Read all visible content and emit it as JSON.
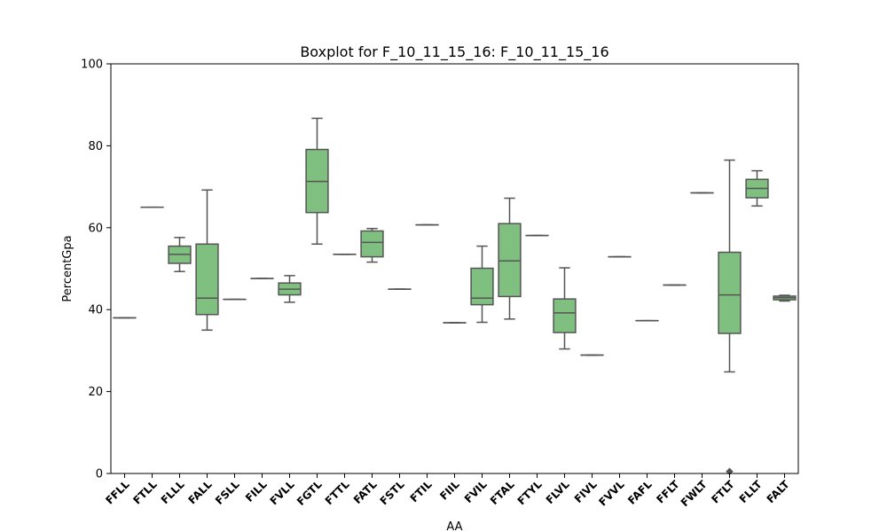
{
  "chart_data": {
    "type": "boxplot",
    "title": "Boxplot for F_10_11_15_16: F_10_11_15_16",
    "xlabel": "AA",
    "ylabel": "PercentGpa",
    "ylim": [
      0,
      100
    ],
    "yticks": [
      0,
      20,
      40,
      60,
      80,
      100
    ],
    "box_color": "#7fbf7f",
    "line_color": "#555555",
    "grid": false,
    "categories": [
      "FFLL",
      "FTLL",
      "FLLL",
      "FALL",
      "FSLL",
      "FILL",
      "FVLL",
      "FGTL",
      "FTTL",
      "FATL",
      "FSTL",
      "FTIL",
      "FIIL",
      "FVIL",
      "FTAL",
      "FTYL",
      "FLVL",
      "FIVL",
      "FVVL",
      "FAFL",
      "FFLT",
      "FWLT",
      "FTLT",
      "FLLT",
      "FALT"
    ],
    "boxes": [
      {
        "whislo": 38.0,
        "q1": 38.0,
        "med": 38.0,
        "q3": 38.0,
        "whishi": 38.0,
        "fliers": []
      },
      {
        "whislo": 65.0,
        "q1": 65.0,
        "med": 65.0,
        "q3": 65.0,
        "whishi": 65.0,
        "fliers": []
      },
      {
        "whislo": 49.3,
        "q1": 51.3,
        "med": 53.5,
        "q3": 55.5,
        "whishi": 57.6,
        "fliers": []
      },
      {
        "whislo": 35.0,
        "q1": 38.8,
        "med": 42.8,
        "q3": 56.0,
        "whishi": 69.2,
        "fliers": []
      },
      {
        "whislo": 42.5,
        "q1": 42.5,
        "med": 42.5,
        "q3": 42.5,
        "whishi": 42.5,
        "fliers": []
      },
      {
        "whislo": 47.6,
        "q1": 47.6,
        "med": 47.6,
        "q3": 47.6,
        "whishi": 47.6,
        "fliers": []
      },
      {
        "whislo": 41.8,
        "q1": 43.6,
        "med": 45.0,
        "q3": 46.5,
        "whishi": 48.3,
        "fliers": []
      },
      {
        "whislo": 56.0,
        "q1": 63.7,
        "med": 71.3,
        "q3": 79.1,
        "whishi": 86.7,
        "fliers": []
      },
      {
        "whislo": 53.5,
        "q1": 53.5,
        "med": 53.5,
        "q3": 53.5,
        "whishi": 53.5,
        "fliers": []
      },
      {
        "whislo": 51.6,
        "q1": 52.9,
        "med": 56.4,
        "q3": 59.2,
        "whishi": 59.8,
        "fliers": []
      },
      {
        "whislo": 45.0,
        "q1": 45.0,
        "med": 45.0,
        "q3": 45.0,
        "whishi": 45.0,
        "fliers": []
      },
      {
        "whislo": 60.7,
        "q1": 60.7,
        "med": 60.7,
        "q3": 60.7,
        "whishi": 60.7,
        "fliers": []
      },
      {
        "whislo": 36.8,
        "q1": 36.8,
        "med": 36.8,
        "q3": 36.8,
        "whishi": 36.8,
        "fliers": []
      },
      {
        "whislo": 36.9,
        "q1": 41.2,
        "med": 42.8,
        "q3": 50.1,
        "whishi": 55.5,
        "fliers": []
      },
      {
        "whislo": 37.7,
        "q1": 43.2,
        "med": 51.9,
        "q3": 61.0,
        "whishi": 67.2,
        "fliers": []
      },
      {
        "whislo": 58.1,
        "q1": 58.1,
        "med": 58.1,
        "q3": 58.1,
        "whishi": 58.1,
        "fliers": []
      },
      {
        "whislo": 30.4,
        "q1": 34.4,
        "med": 39.2,
        "q3": 42.6,
        "whishi": 50.2,
        "fliers": []
      },
      {
        "whislo": 28.9,
        "q1": 28.9,
        "med": 28.9,
        "q3": 28.9,
        "whishi": 28.9,
        "fliers": []
      },
      {
        "whislo": 52.9,
        "q1": 52.9,
        "med": 52.9,
        "q3": 52.9,
        "whishi": 52.9,
        "fliers": []
      },
      {
        "whislo": 37.3,
        "q1": 37.3,
        "med": 37.3,
        "q3": 37.3,
        "whishi": 37.3,
        "fliers": []
      },
      {
        "whislo": 46.0,
        "q1": 46.0,
        "med": 46.0,
        "q3": 46.0,
        "whishi": 46.0,
        "fliers": []
      },
      {
        "whislo": 68.5,
        "q1": 68.5,
        "med": 68.5,
        "q3": 68.5,
        "whishi": 68.5,
        "fliers": []
      },
      {
        "whislo": 24.8,
        "q1": 34.2,
        "med": 43.6,
        "q3": 54.0,
        "whishi": 76.5,
        "fliers": [
          0.5
        ]
      },
      {
        "whislo": 65.3,
        "q1": 67.3,
        "med": 69.6,
        "q3": 71.8,
        "whishi": 73.9,
        "fliers": []
      },
      {
        "whislo": 42.1,
        "q1": 42.4,
        "med": 42.9,
        "q3": 43.3,
        "whishi": 43.5,
        "fliers": []
      }
    ]
  }
}
